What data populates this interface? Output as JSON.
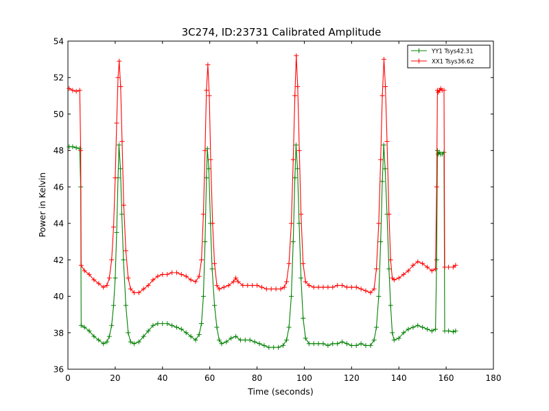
{
  "chart_data": {
    "type": "line",
    "title": "3C274, ID:23731 Calibrated Amplitude",
    "xlabel": "Time (seconds)",
    "ylabel": "Power in Kelvin",
    "xlim": [
      0,
      180
    ],
    "ylim": [
      36,
      54
    ],
    "xticks": [
      0,
      20,
      40,
      60,
      80,
      100,
      120,
      140,
      160,
      180
    ],
    "yticks": [
      36,
      38,
      40,
      42,
      44,
      46,
      48,
      50,
      52,
      54
    ],
    "grid": false,
    "legend_position": "top-right",
    "marker": "+",
    "series": [
      {
        "name": "YY1 Tsys42.31",
        "color": "#008000",
        "points": [
          [
            0.5,
            48.2
          ],
          [
            2,
            48.2
          ],
          [
            3.5,
            48.15
          ],
          [
            5,
            48.1
          ],
          [
            5.4,
            46.0
          ],
          [
            5.6,
            38.4
          ],
          [
            7,
            38.3
          ],
          [
            9,
            38.1
          ],
          [
            11,
            37.8
          ],
          [
            13,
            37.6
          ],
          [
            15,
            37.4
          ],
          [
            16.5,
            37.5
          ],
          [
            17.5,
            37.8
          ],
          [
            18.5,
            38.4
          ],
          [
            19.3,
            39.5
          ],
          [
            20,
            41.0
          ],
          [
            20.6,
            43.5
          ],
          [
            21.2,
            46.5
          ],
          [
            21.6,
            48.3
          ],
          [
            22.2,
            47.0
          ],
          [
            22.8,
            44.5
          ],
          [
            23.5,
            42.0
          ],
          [
            24.5,
            39.5
          ],
          [
            25.5,
            38.0
          ],
          [
            26.5,
            37.5
          ],
          [
            28,
            37.4
          ],
          [
            30,
            37.5
          ],
          [
            32,
            37.8
          ],
          [
            34,
            38.1
          ],
          [
            36,
            38.4
          ],
          [
            38,
            38.5
          ],
          [
            40,
            38.5
          ],
          [
            42,
            38.5
          ],
          [
            44,
            38.4
          ],
          [
            46,
            38.3
          ],
          [
            48,
            38.2
          ],
          [
            50,
            38.0
          ],
          [
            52,
            37.8
          ],
          [
            54,
            37.6
          ],
          [
            55.5,
            37.9
          ],
          [
            56.5,
            38.5
          ],
          [
            57.3,
            40.0
          ],
          [
            58,
            43.0
          ],
          [
            58.6,
            46.5
          ],
          [
            59,
            48.1
          ],
          [
            59.6,
            47.0
          ],
          [
            60.3,
            44.0
          ],
          [
            61,
            41.5
          ],
          [
            62,
            39.5
          ],
          [
            63,
            38.3
          ],
          [
            64,
            37.6
          ],
          [
            65,
            37.4
          ],
          [
            67,
            37.5
          ],
          [
            69,
            37.7
          ],
          [
            71,
            37.8
          ],
          [
            73,
            37.6
          ],
          [
            75,
            37.6
          ],
          [
            77,
            37.6
          ],
          [
            79,
            37.5
          ],
          [
            81,
            37.4
          ],
          [
            83,
            37.3
          ],
          [
            85,
            37.2
          ],
          [
            87,
            37.2
          ],
          [
            89,
            37.2
          ],
          [
            91,
            37.3
          ],
          [
            92.5,
            37.6
          ],
          [
            93.5,
            38.3
          ],
          [
            94.5,
            40.0
          ],
          [
            95.3,
            43.0
          ],
          [
            96,
            46.5
          ],
          [
            96.5,
            48.3
          ],
          [
            97.1,
            47.0
          ],
          [
            97.8,
            44.0
          ],
          [
            98.6,
            41.0
          ],
          [
            99.5,
            38.8
          ],
          [
            100.5,
            37.7
          ],
          [
            102,
            37.4
          ],
          [
            104,
            37.4
          ],
          [
            106,
            37.4
          ],
          [
            108,
            37.4
          ],
          [
            110,
            37.3
          ],
          [
            112,
            37.4
          ],
          [
            114,
            37.4
          ],
          [
            116,
            37.5
          ],
          [
            118,
            37.4
          ],
          [
            120,
            37.3
          ],
          [
            122,
            37.3
          ],
          [
            124,
            37.4
          ],
          [
            126,
            37.3
          ],
          [
            128,
            37.3
          ],
          [
            129.5,
            37.6
          ],
          [
            130.5,
            38.3
          ],
          [
            131.5,
            40.0
          ],
          [
            132.3,
            43.0
          ],
          [
            133,
            46.3
          ],
          [
            133.6,
            48.3
          ],
          [
            134.2,
            47.0
          ],
          [
            135,
            44.5
          ],
          [
            135.8,
            41.5
          ],
          [
            136.5,
            39.5
          ],
          [
            137.2,
            38.0
          ],
          [
            138,
            37.6
          ],
          [
            140,
            37.7
          ],
          [
            142,
            38.0
          ],
          [
            144,
            38.2
          ],
          [
            146,
            38.3
          ],
          [
            148,
            38.4
          ],
          [
            150,
            38.3
          ],
          [
            152,
            38.2
          ],
          [
            154,
            38.1
          ],
          [
            155.5,
            38.2
          ],
          [
            156,
            42.0
          ],
          [
            156.3,
            48.0
          ],
          [
            156.6,
            47.8
          ],
          [
            157.1,
            47.9
          ],
          [
            157.6,
            47.8
          ],
          [
            158.3,
            47.8
          ],
          [
            159.1,
            47.9
          ],
          [
            159.4,
            38.1
          ],
          [
            161,
            38.1
          ],
          [
            163,
            38.05
          ],
          [
            164,
            38.1
          ]
        ]
      },
      {
        "name": "XX1 Tsys36.62",
        "color": "#ff0000",
        "points": [
          [
            0.5,
            51.4
          ],
          [
            2,
            51.3
          ],
          [
            3.5,
            51.25
          ],
          [
            5,
            51.3
          ],
          [
            5.4,
            48.0
          ],
          [
            5.6,
            41.7
          ],
          [
            7,
            41.4
          ],
          [
            9,
            41.2
          ],
          [
            11,
            40.9
          ],
          [
            13,
            40.7
          ],
          [
            15,
            40.5
          ],
          [
            16.5,
            40.6
          ],
          [
            17.5,
            41.0
          ],
          [
            18.5,
            42.0
          ],
          [
            19.3,
            43.8
          ],
          [
            20,
            46.5
          ],
          [
            20.6,
            49.5
          ],
          [
            21.2,
            52.0
          ],
          [
            21.7,
            52.9
          ],
          [
            22.3,
            51.5
          ],
          [
            22.9,
            48.5
          ],
          [
            23.6,
            45.0
          ],
          [
            24.5,
            42.5
          ],
          [
            25.5,
            41.0
          ],
          [
            26.5,
            40.4
          ],
          [
            28,
            40.2
          ],
          [
            30,
            40.2
          ],
          [
            32,
            40.4
          ],
          [
            34,
            40.6
          ],
          [
            36,
            40.9
          ],
          [
            38,
            41.1
          ],
          [
            40,
            41.2
          ],
          [
            42,
            41.2
          ],
          [
            44,
            41.3
          ],
          [
            46,
            41.3
          ],
          [
            48,
            41.2
          ],
          [
            50,
            41.1
          ],
          [
            52,
            40.9
          ],
          [
            54,
            40.8
          ],
          [
            55.5,
            41.1
          ],
          [
            56.5,
            42.0
          ],
          [
            57.3,
            44.5
          ],
          [
            58,
            48.0
          ],
          [
            58.6,
            51.3
          ],
          [
            59.2,
            52.7
          ],
          [
            59.8,
            51.0
          ],
          [
            60.4,
            47.5
          ],
          [
            61.2,
            44.0
          ],
          [
            62,
            41.8
          ],
          [
            63,
            40.6
          ],
          [
            64,
            40.4
          ],
          [
            66,
            40.5
          ],
          [
            68,
            40.6
          ],
          [
            70,
            40.8
          ],
          [
            71,
            41.0
          ],
          [
            72,
            40.8
          ],
          [
            74,
            40.6
          ],
          [
            76,
            40.6
          ],
          [
            78,
            40.6
          ],
          [
            80,
            40.6
          ],
          [
            82,
            40.5
          ],
          [
            84,
            40.4
          ],
          [
            86,
            40.4
          ],
          [
            88,
            40.4
          ],
          [
            90,
            40.4
          ],
          [
            91.5,
            40.5
          ],
          [
            92.5,
            40.8
          ],
          [
            93.5,
            41.8
          ],
          [
            94.5,
            44.0
          ],
          [
            95.3,
            47.5
          ],
          [
            96,
            51.0
          ],
          [
            96.6,
            53.2
          ],
          [
            97.2,
            51.5
          ],
          [
            97.9,
            48.0
          ],
          [
            98.6,
            44.5
          ],
          [
            99.5,
            41.8
          ],
          [
            100.5,
            40.8
          ],
          [
            102,
            40.6
          ],
          [
            104,
            40.5
          ],
          [
            106,
            40.5
          ],
          [
            108,
            40.5
          ],
          [
            110,
            40.5
          ],
          [
            112,
            40.5
          ],
          [
            114,
            40.6
          ],
          [
            116,
            40.6
          ],
          [
            118,
            40.5
          ],
          [
            120,
            40.5
          ],
          [
            122,
            40.5
          ],
          [
            124,
            40.4
          ],
          [
            126,
            40.3
          ],
          [
            128,
            40.2
          ],
          [
            129.5,
            40.4
          ],
          [
            130.5,
            41.5
          ],
          [
            131.5,
            44.0
          ],
          [
            132.3,
            47.5
          ],
          [
            133,
            51.0
          ],
          [
            133.7,
            53.0
          ],
          [
            134.3,
            51.5
          ],
          [
            135,
            48.5
          ],
          [
            135.8,
            44.5
          ],
          [
            136.5,
            42.0
          ],
          [
            137.2,
            41.0
          ],
          [
            138,
            40.9
          ],
          [
            140,
            41.0
          ],
          [
            142,
            41.2
          ],
          [
            144,
            41.4
          ],
          [
            146,
            41.7
          ],
          [
            148,
            41.9
          ],
          [
            150,
            41.8
          ],
          [
            152,
            41.6
          ],
          [
            154,
            41.4
          ],
          [
            155.5,
            41.5
          ],
          [
            156,
            46.0
          ],
          [
            156.3,
            51.3
          ],
          [
            156.7,
            51.2
          ],
          [
            157.2,
            51.3
          ],
          [
            157.7,
            51.4
          ],
          [
            158.3,
            51.3
          ],
          [
            159.1,
            51.3
          ],
          [
            159.4,
            41.6
          ],
          [
            161,
            41.6
          ],
          [
            163,
            41.6
          ],
          [
            164,
            41.7
          ]
        ]
      }
    ]
  }
}
